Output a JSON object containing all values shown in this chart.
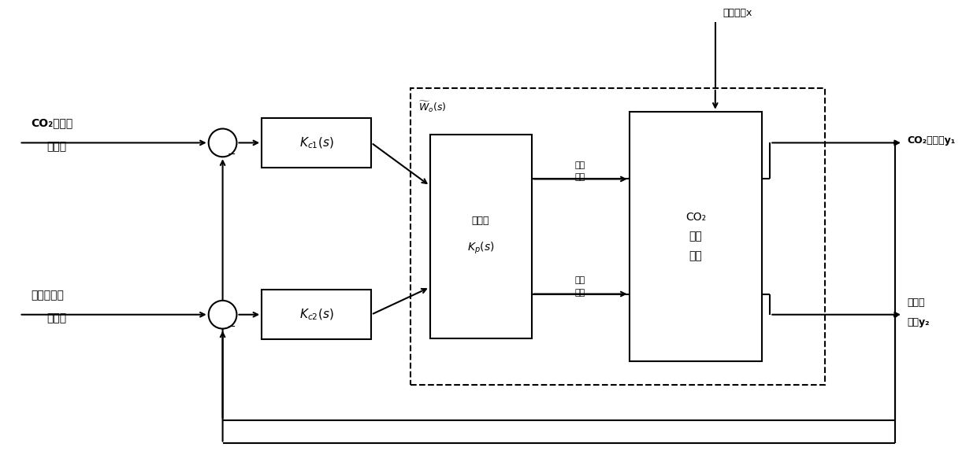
{
  "bg_color": "#ffffff",
  "figsize": [
    12.4,
    6.01
  ],
  "dpi": 100,
  "labels": {
    "co2_setpoint_line1": "CO₂捕集率",
    "co2_setpoint_line2": "设定値",
    "reboiler_setpoint_line1": "再沫器温度",
    "reboiler_setpoint_line2": "设定値",
    "Kc1": "$K_{c1}(s)$",
    "Kc2": "$K_{c2}(s)$",
    "Kp_line1": "试验的",
    "Kp_line2": "$K_p(s)$",
    "Wo": "$\\widetilde{W}_o(s)$",
    "co2_system_line1": "CO₂",
    "co2_system_line2": "捕集",
    "co2_system_line3": "系统",
    "flue_gas": "烟气流量x",
    "rich_liquid_line1": "贫液",
    "rich_liquid_line2": "流量",
    "steam_line1": "抓汽",
    "steam_line2": "流量",
    "co2_output": "CO₂捕集率y₁",
    "reboiler_output_line1": "再沫器",
    "reboiler_output_line2": "温度y₂"
  }
}
